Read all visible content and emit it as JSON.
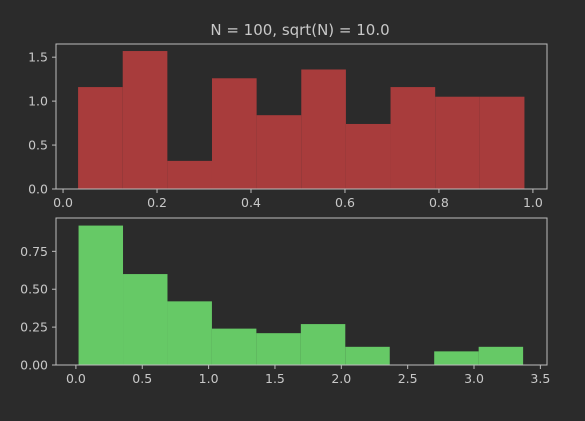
{
  "chart_data": {
    "title": "N = 100, sqrt(N) = 10.0",
    "subplots": [
      {
        "type": "bar",
        "color": "#a83c3c",
        "bin_edges": [
          0.032,
          0.127,
          0.222,
          0.317,
          0.412,
          0.507,
          0.602,
          0.697,
          0.792,
          0.887,
          0.982
        ],
        "values": [
          1.16,
          1.57,
          0.32,
          1.26,
          0.84,
          1.36,
          0.74,
          1.16,
          1.05,
          1.05
        ],
        "xlim": [
          -0.015,
          1.03
        ],
        "ylim": [
          0,
          1.65
        ],
        "xticks": [
          0.0,
          0.2,
          0.4,
          0.6,
          0.8,
          1.0
        ],
        "xtick_labels": [
          "0.0",
          "0.2",
          "0.4",
          "0.6",
          "0.8",
          "1.0"
        ],
        "yticks": [
          0.0,
          0.5,
          1.0,
          1.5
        ],
        "ytick_labels": [
          "0.0",
          "0.5",
          "1.0",
          "1.5"
        ]
      },
      {
        "type": "bar",
        "color": "#66c966",
        "bin_edges": [
          0.02,
          0.355,
          0.69,
          1.025,
          1.36,
          1.695,
          2.03,
          2.365,
          2.7,
          3.035,
          3.37
        ],
        "values": [
          0.92,
          0.6,
          0.42,
          0.24,
          0.21,
          0.27,
          0.12,
          0.0,
          0.09,
          0.12
        ],
        "xlim": [
          -0.15,
          3.55
        ],
        "ylim": [
          0,
          0.97
        ],
        "xticks": [
          0.0,
          0.5,
          1.0,
          1.5,
          2.0,
          2.5,
          3.0,
          3.5
        ],
        "xtick_labels": [
          "0.0",
          "0.5",
          "1.0",
          "1.5",
          "2.0",
          "2.5",
          "3.0",
          "3.5"
        ],
        "yticks": [
          0.0,
          0.25,
          0.5,
          0.75
        ],
        "ytick_labels": [
          "0.00",
          "0.25",
          "0.50",
          "0.75"
        ]
      }
    ]
  }
}
